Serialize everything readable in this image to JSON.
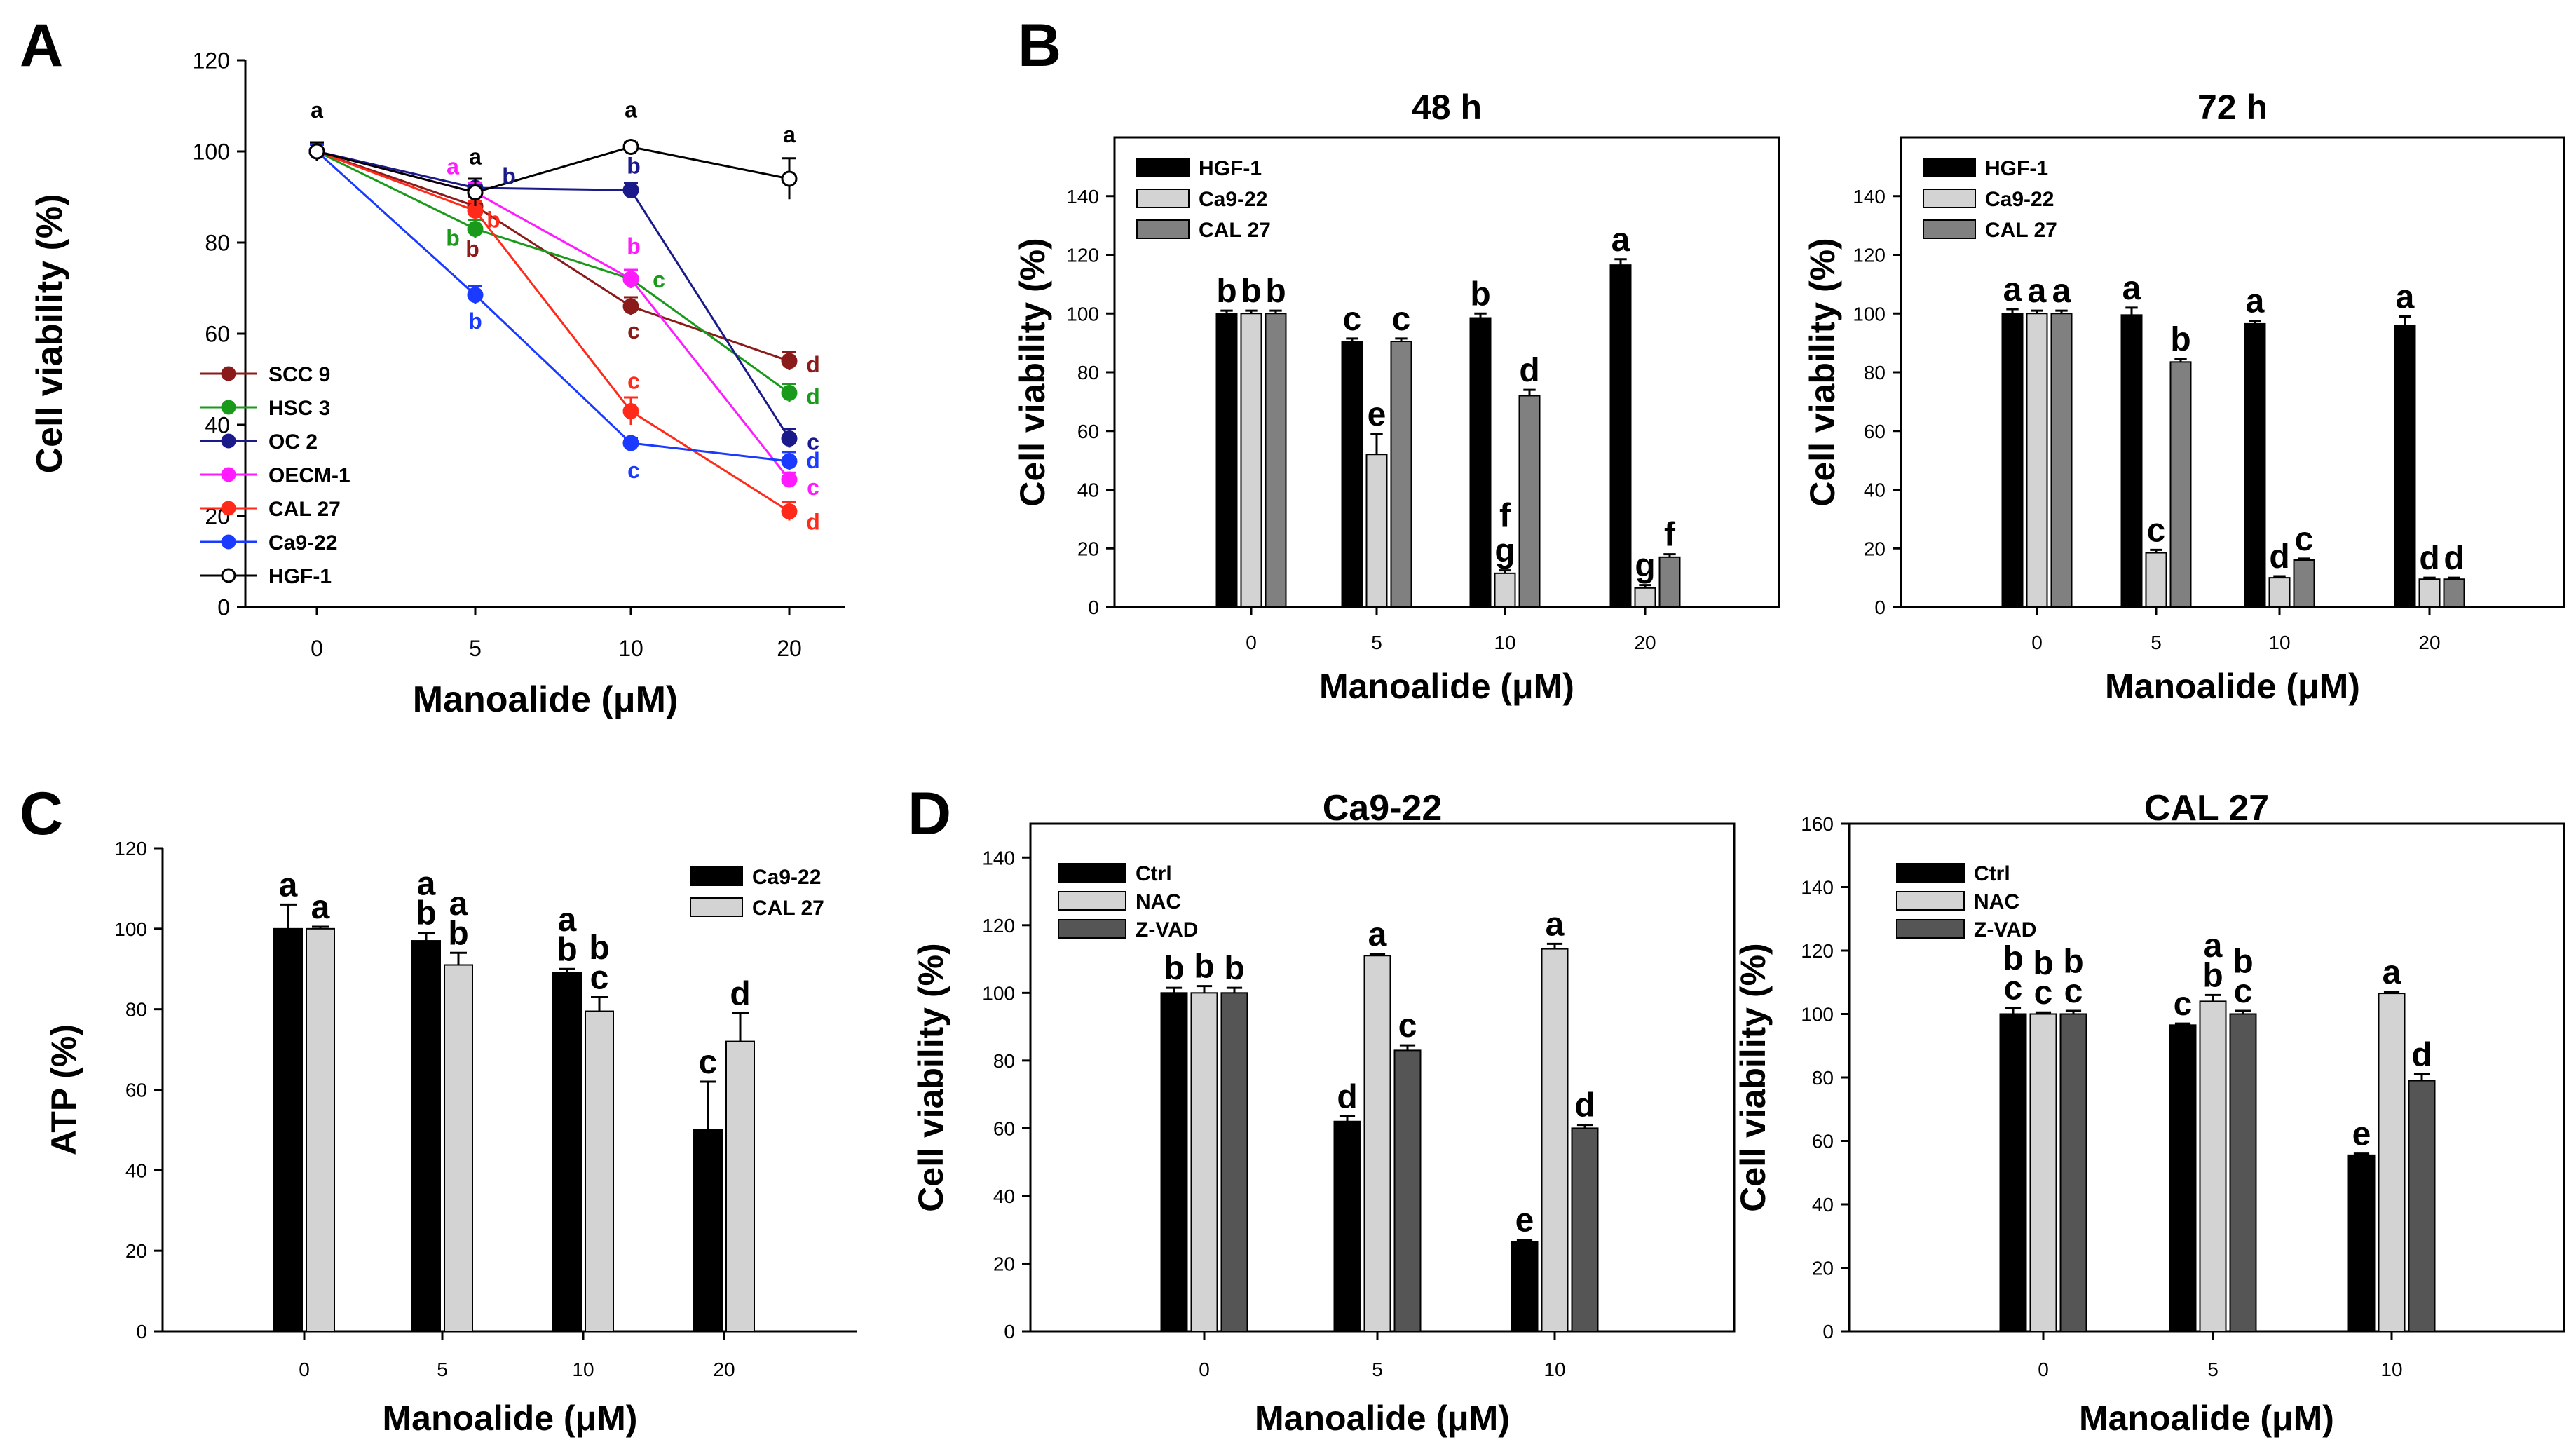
{
  "panel_labels": {
    "A": "A",
    "B": "B",
    "C": "C",
    "D": "D"
  },
  "chart_data": [
    {
      "id": "A",
      "type": "line",
      "title": "",
      "xlabel": "Manoalide (μM)",
      "ylabel": "Cell viability (%)",
      "categories": [
        "0",
        "5",
        "10",
        "20"
      ],
      "ylim": [
        0,
        120
      ],
      "yticks": [
        "0",
        "20",
        "40",
        "60",
        "80",
        "100",
        "120"
      ],
      "legend_position": "left",
      "series": [
        {
          "name": "SCC 9",
          "color": "#8b1a1a",
          "marker": "filled",
          "values": [
            100,
            88,
            66,
            54
          ],
          "errors": [
            1.5,
            2,
            2,
            2
          ],
          "letters": [
            "",
            "b",
            "c",
            "d"
          ]
        },
        {
          "name": "HSC 3",
          "color": "#1a9a1a",
          "marker": "filled",
          "values": [
            100,
            83,
            72,
            47
          ],
          "errors": [
            1.5,
            2,
            2,
            2
          ],
          "letters": [
            "",
            "b",
            "c",
            "d"
          ]
        },
        {
          "name": "OC 2",
          "color": "#1a1a8b",
          "marker": "filled",
          "values": [
            100,
            92,
            91.5,
            37
          ],
          "errors": [
            1.5,
            2,
            1.5,
            2
          ],
          "letters": [
            "",
            "b",
            "b",
            "c"
          ]
        },
        {
          "name": "OECM-1",
          "color": "#ff1aff",
          "marker": "filled",
          "values": [
            100,
            91,
            72,
            28
          ],
          "errors": [
            1.5,
            2,
            2,
            1.5
          ],
          "letters": [
            "",
            "a",
            "b",
            "c"
          ]
        },
        {
          "name": "CAL 27",
          "color": "#ff2a1a",
          "marker": "filled",
          "values": [
            100,
            87,
            43,
            21
          ],
          "errors": [
            1.5,
            2,
            3,
            2
          ],
          "letters": [
            "",
            "b",
            "c",
            "d"
          ]
        },
        {
          "name": "Ca9-22",
          "color": "#1a3aff",
          "marker": "filled",
          "values": [
            100,
            68.5,
            36,
            32
          ],
          "errors": [
            1.5,
            2,
            1,
            2
          ],
          "letters": [
            "",
            "b",
            "c",
            "d"
          ]
        },
        {
          "name": "HGF-1",
          "color": "#000000",
          "marker": "open",
          "values": [
            100,
            91,
            101,
            94
          ],
          "errors": [
            2,
            3,
            1,
            4.5
          ],
          "letters": [
            "a",
            "a",
            "a",
            "a"
          ]
        }
      ]
    },
    {
      "id": "B1",
      "type": "bar",
      "title": "48 h",
      "xlabel": "Manoalide (μM)",
      "ylabel": "Cell viability (%)",
      "categories": [
        "0",
        "5",
        "10",
        "20"
      ],
      "ylim": [
        0,
        160
      ],
      "yticks": [
        "0",
        "20",
        "40",
        "60",
        "80",
        "100",
        "120",
        "140"
      ],
      "legend_position": "top-left",
      "series": [
        {
          "name": "HGF-1",
          "color": "#000000",
          "values": [
            100,
            90.5,
            98.5,
            116.5
          ],
          "errors": [
            1,
            1,
            1.5,
            2
          ],
          "letters": [
            "b",
            "c",
            "b",
            "a"
          ]
        },
        {
          "name": "Ca9-22",
          "color": "#d3d3d3",
          "values": [
            100,
            52,
            11.5,
            6.5
          ],
          "errors": [
            1,
            7,
            1,
            1
          ],
          "letters": [
            "b",
            "e",
            "g",
            "g"
          ]
        },
        {
          "name": "CAL 27",
          "color": "#808080",
          "values": [
            100,
            90.5,
            72,
            17
          ],
          "errors": [
            1,
            1,
            2,
            1
          ],
          "letters": [
            "b",
            "c",
            "d",
            "f"
          ]
        }
      ],
      "extra_letters": [
        {
          "category": "10",
          "series": "Ca9-22",
          "text": "f"
        }
      ]
    },
    {
      "id": "B2",
      "type": "bar",
      "title": "72 h",
      "xlabel": "Manoalide (μM)",
      "ylabel": "Cell viability (%)",
      "categories": [
        "0",
        "5",
        "10",
        "20"
      ],
      "ylim": [
        0,
        160
      ],
      "yticks": [
        "0",
        "20",
        "40",
        "60",
        "80",
        "100",
        "120",
        "140"
      ],
      "legend_position": "top-left",
      "series": [
        {
          "name": "HGF-1",
          "color": "#000000",
          "values": [
            100,
            99.5,
            96.5,
            96
          ],
          "errors": [
            1.5,
            2.5,
            1,
            3
          ],
          "letters": [
            "a",
            "a",
            "a",
            "a"
          ]
        },
        {
          "name": "Ca9-22",
          "color": "#d3d3d3",
          "values": [
            100,
            18.5,
            10,
            9.5
          ],
          "errors": [
            1,
            1,
            0.5,
            0.5
          ],
          "letters": [
            "a",
            "c",
            "d",
            "d"
          ]
        },
        {
          "name": "CAL 27",
          "color": "#808080",
          "values": [
            100,
            83.5,
            16,
            9.5
          ],
          "errors": [
            1,
            1,
            0.5,
            0.5
          ],
          "letters": [
            "a",
            "b",
            "c",
            "d"
          ]
        }
      ]
    },
    {
      "id": "C",
      "type": "bar",
      "title": "",
      "xlabel": "Manoalide (μM)",
      "ylabel": "ATP (%)",
      "categories": [
        "0",
        "5",
        "10",
        "20"
      ],
      "ylim": [
        0,
        120
      ],
      "yticks": [
        "0",
        "20",
        "40",
        "60",
        "80",
        "100",
        "120"
      ],
      "legend_position": "top-right",
      "series": [
        {
          "name": "Ca9-22",
          "color": "#000000",
          "values": [
            100,
            97,
            89,
            50
          ],
          "errors": [
            6,
            2,
            1,
            12
          ],
          "letters": [
            "a",
            "a\nb",
            "a\nb",
            "c"
          ]
        },
        {
          "name": "CAL 27",
          "color": "#d3d3d3",
          "values": [
            100,
            91,
            79.5,
            72
          ],
          "errors": [
            0.5,
            3,
            3.5,
            7
          ],
          "letters": [
            "a",
            "a\nb",
            "b\nc",
            "d"
          ]
        }
      ]
    },
    {
      "id": "D1",
      "type": "bar",
      "title": "Ca9-22",
      "xlabel": "Manoalide (μM)",
      "ylabel": "Cell viability (%)",
      "categories": [
        "0",
        "5",
        "10"
      ],
      "ylim": [
        0,
        150
      ],
      "yticks": [
        "0",
        "20",
        "40",
        "60",
        "80",
        "100",
        "120",
        "140"
      ],
      "legend_position": "top-left",
      "series": [
        {
          "name": "Ctrl",
          "color": "#000000",
          "values": [
            100,
            62,
            26.5
          ],
          "errors": [
            1.5,
            1.5,
            0.5
          ],
          "letters": [
            "b",
            "d",
            "e"
          ]
        },
        {
          "name": "NAC",
          "color": "#d3d3d3",
          "values": [
            100,
            111,
            113
          ],
          "errors": [
            2,
            0.5,
            1.5
          ],
          "letters": [
            "b",
            "a",
            "a"
          ]
        },
        {
          "name": "Z-VAD",
          "color": "#555555",
          "values": [
            100,
            83,
            60
          ],
          "errors": [
            1.5,
            1.5,
            1
          ],
          "letters": [
            "b",
            "c",
            "d"
          ]
        }
      ]
    },
    {
      "id": "D2",
      "type": "bar",
      "title": "CAL 27",
      "xlabel": "Manoalide (μM)",
      "ylabel": "Cell viability (%)",
      "categories": [
        "0",
        "5",
        "10"
      ],
      "ylim": [
        0,
        160
      ],
      "yticks": [
        "0",
        "20",
        "40",
        "60",
        "80",
        "100",
        "120",
        "140",
        "160"
      ],
      "legend_position": "top-left",
      "series": [
        {
          "name": "Ctrl",
          "color": "#000000",
          "values": [
            100,
            96.5,
            55.5
          ],
          "errors": [
            2,
            0.5,
            0.5
          ],
          "letters": [
            "b\nc",
            "c",
            "e"
          ]
        },
        {
          "name": "NAC",
          "color": "#d3d3d3",
          "values": [
            100,
            104,
            106.5
          ],
          "errors": [
            0.5,
            2,
            0.5
          ],
          "letters": [
            "b\nc",
            "a\nb",
            "a"
          ]
        },
        {
          "name": "Z-VAD",
          "color": "#555555",
          "values": [
            100,
            100,
            79
          ],
          "errors": [
            1,
            1,
            2
          ],
          "letters": [
            "b\nc",
            "b\nc",
            "d"
          ]
        }
      ]
    }
  ]
}
